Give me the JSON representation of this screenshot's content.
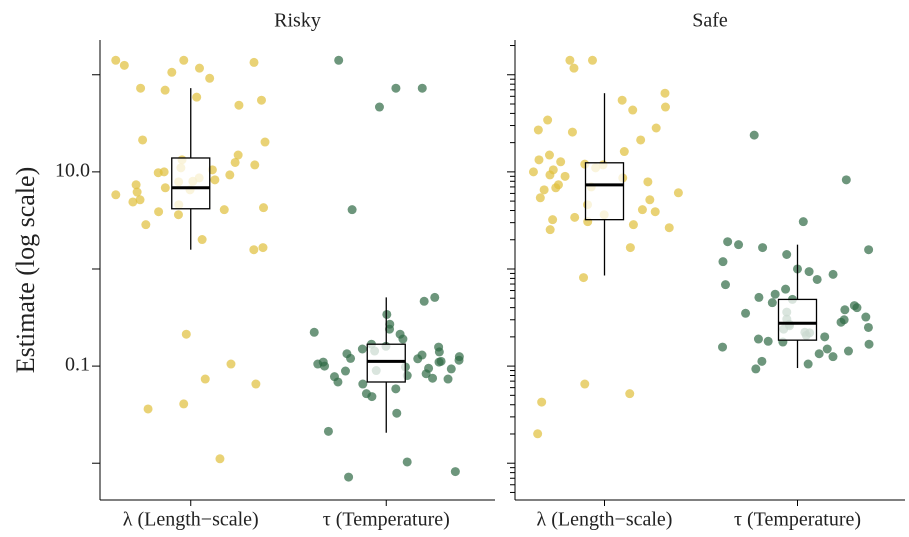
{
  "chart_data": {
    "type": "box-jitter",
    "y_label": "Estimate (log scale)",
    "log_scale": true,
    "ylim": [
      0.00418,
      228
    ],
    "yticks": [
      {
        "value": 10,
        "label": "10.0"
      },
      0.1
    ],
    "yticks_unlabeled": [
      100,
      1,
      0.01
    ],
    "categories": [
      "λ (Length−scale)",
      "τ (Temperature)"
    ],
    "colors": [
      "#e0bf3a",
      "#2f6a45"
    ],
    "facets": [
      {
        "title": "Risky",
        "minor_ticks": false,
        "groups": [
          {
            "values": [
              141,
              134,
              125,
              117,
              106,
              141,
              92,
              72.7,
              69.4,
              58.8,
              54.7,
              48.6,
              21.3,
              20.3,
              14.9,
              13.3,
              11.8,
              11,
              10.5,
              10,
              9.31,
              8.67,
              8.28,
              7.89,
              7.36,
              6.86,
              6.53,
              5.81,
              5.16,
              4.59,
              4.28,
              4.08,
              3.89,
              3.62,
              2.86,
              2.01,
              1.66,
              1.58,
              0.213,
              0.105,
              0.0736,
              0.0654,
              0.0408,
              0.0362,
              0.0111,
              12.5,
              9.8,
              8.0,
              6.2,
              4.9
            ],
            "box": {
              "whisker_low": 1.58,
              "q1": 4.17,
              "median": 6.86,
              "q3": 13.9,
              "whisker_high": 72.8
            }
          },
          {
            "values": [
              141,
              72.7,
              72.7,
              46.5,
              4.08,
              0.51,
              0.465,
              0.34,
              0.27,
              0.24,
              0.223,
              0.213,
              0.19,
              0.168,
              0.157,
              0.15,
              0.143,
              0.134,
              0.125,
              0.119,
              0.112,
              0.11,
              0.105,
              0.098,
              0.0935,
              0.089,
              0.0834,
              0.0779,
              0.0736,
              0.0686,
              0.0654,
              0.0583,
              0.052,
              0.0485,
              0.0327,
              0.0213,
              0.0103,
              0.0082,
              0.0072,
              0.12,
              0.095,
              0.14,
              0.08,
              0.11,
              0.16,
              0.075,
              0.13,
              0.1,
              0.09,
              0.115
            ],
            "box": {
              "whisker_low": 0.0206,
              "q1": 0.0686,
              "median": 0.112,
              "q3": 0.168,
              "whisker_high": 0.51
            }
          }
        ]
      },
      {
        "title": "Safe",
        "minor_ticks": true,
        "groups": [
          {
            "values": [
              141,
              141,
              117,
              64.6,
              54.7,
              46.5,
              43.3,
              34.2,
              28.3,
              27,
              25.7,
              21.3,
              16.2,
              14.9,
              13.3,
              12.7,
              11.8,
              11,
              10.5,
              10,
              9.31,
              8.67,
              7.89,
              7.36,
              6.86,
              6.53,
              6.09,
              5.41,
              5.16,
              4.59,
              4.08,
              3.89,
              3.62,
              3.22,
              3.07,
              2.86,
              2.66,
              2.54,
              1.66,
              0.815,
              0.0654,
              0.052,
              0.0426,
              0.0201,
              9,
              7,
              3.4,
              12
            ],
            "box": {
              "whisker_low": 0.857,
              "q1": 3.22,
              "median": 7.35,
              "q3": 12.4,
              "whisker_high": 64.6
            }
          },
          {
            "values": [
              23.9,
              8.28,
              3.07,
              1.91,
              1.78,
              1.66,
              1.58,
              1.41,
              1.19,
              1,
              0.94,
              0.88,
              0.78,
              0.69,
              0.62,
              0.55,
              0.51,
              0.486,
              0.45,
              0.4,
              0.38,
              0.36,
              0.32,
              0.305,
              0.283,
              0.27,
              0.25,
              0.24,
              0.223,
              0.207,
              0.19,
              0.177,
              0.168,
              0.157,
              0.143,
              0.134,
              0.125,
              0.112,
              0.105,
              0.0935,
              0.3,
              0.26,
              0.22,
              0.18,
              0.35,
              0.42,
              0.2,
              0.15
            ],
            "box": {
              "whisker_low": 0.0955,
              "q1": 0.185,
              "median": 0.276,
              "q3": 0.486,
              "whisker_high": 1.78
            }
          }
        ]
      }
    ]
  }
}
